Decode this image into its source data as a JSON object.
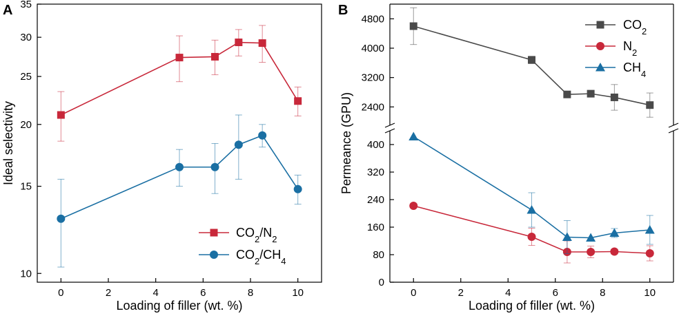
{
  "chart_data": [
    {
      "panel": "A",
      "type": "line",
      "xlabel": "Loading of filler (wt. %)",
      "ylabel": "Ideal selectivity",
      "yscale": "log",
      "xlim": [
        -1,
        11
      ],
      "ylim": [
        9.6,
        35
      ],
      "xticks": [
        "0",
        "2",
        "4",
        "6",
        "8",
        "10"
      ],
      "yticks": [
        "10",
        "15",
        "20",
        "25",
        "30",
        "35"
      ],
      "legend_position": "bottom-right",
      "x": [
        0,
        5,
        6.5,
        7.5,
        8.5,
        10
      ],
      "series": [
        {
          "name": "CO2/N2",
          "name_base": "CO",
          "name_sub": "2",
          "name_mid": "/N",
          "name_sub2": "2",
          "color": "#c8283a",
          "marker": "square",
          "values": [
            20.9,
            27.3,
            27.4,
            29.3,
            29.2,
            22.3
          ],
          "err": [
            2.4,
            2.9,
            2.2,
            1.8,
            2.5,
            1.5
          ]
        },
        {
          "name": "CO2/CH4",
          "name_base": "CO",
          "name_sub": "2",
          "name_mid": "/CH",
          "name_sub2": "4",
          "color": "#1a6fa3",
          "marker": "circle",
          "values": [
            12.9,
            16.4,
            16.4,
            18.2,
            19.0,
            14.8
          ],
          "err": [
            2.6,
            1.4,
            1.9,
            2.7,
            1.0,
            1.0
          ]
        }
      ]
    },
    {
      "panel": "B",
      "type": "line",
      "xlabel": "Loading of filler (wt. %)",
      "ylabel": "Permeance (GPU)",
      "broken_axis": true,
      "xlim": [
        -1,
        11
      ],
      "ylim_lower": [
        0,
        440
      ],
      "ylim_upper": [
        1900,
        5200
      ],
      "xticks": [
        "0",
        "2",
        "4",
        "6",
        "8",
        "10"
      ],
      "yticks_lower": [
        "0",
        "80",
        "160",
        "240",
        "320",
        "400"
      ],
      "yticks_upper": [
        "2400",
        "3200",
        "4000",
        "4800"
      ],
      "legend_position": "top-right",
      "series": [
        {
          "name": "CO2",
          "name_base": "CO",
          "name_sub": "2",
          "color": "#4a4a4a",
          "marker": "square",
          "x": [
            0,
            5,
            6.5,
            7.5,
            8.5,
            10
          ],
          "values": [
            4600,
            3680,
            2740,
            2760,
            2660,
            2450
          ],
          "err": [
            500,
            100,
            0,
            0,
            350,
            330
          ]
        },
        {
          "name": "N2",
          "name_base": "N",
          "name_sub": "2",
          "color": "#c8283a",
          "marker": "circle",
          "x": [
            0,
            5,
            6.5,
            7.5,
            8.5,
            10
          ],
          "values": [
            222,
            132,
            88,
            88,
            89,
            84
          ],
          "err": [
            0,
            25,
            32,
            17,
            7,
            22
          ]
        },
        {
          "name": "CH4",
          "name_base": "CH",
          "name_sub": "4",
          "color": "#1a6fa3",
          "marker": "triangle",
          "x": [
            0,
            5,
            6.5,
            7.5,
            8.5,
            10
          ],
          "values": [
            423,
            210,
            131,
            129,
            143,
            152
          ],
          "err": [
            0,
            50,
            48,
            0,
            13,
            42
          ]
        }
      ]
    }
  ]
}
